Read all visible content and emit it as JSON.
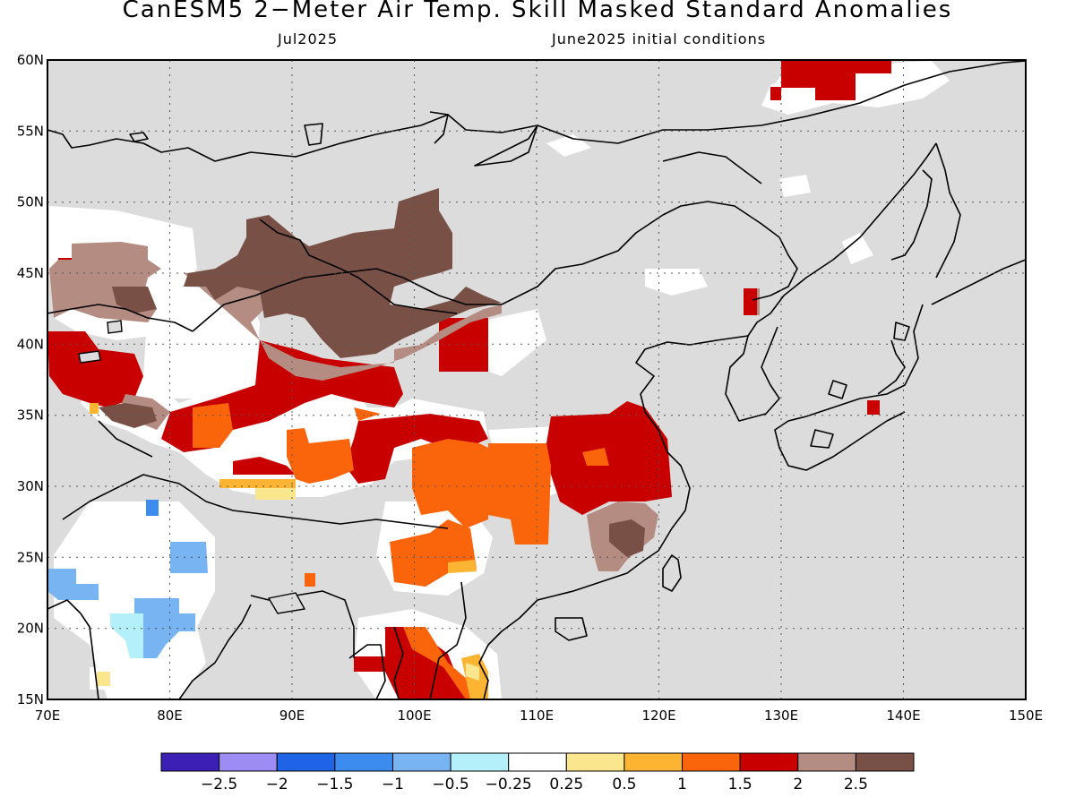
{
  "title": "CanESM5 2−Meter Air Temp. Skill Masked Standard Anomalies",
  "subtitle_left": "Jul2025",
  "subtitle_right": "June2025 initial conditions",
  "map": {
    "lon_range": [
      70,
      150
    ],
    "lat_range": [
      15,
      60
    ],
    "lon_labels": [
      "70E",
      "80E",
      "90E",
      "100E",
      "110E",
      "120E",
      "130E",
      "140E",
      "150E"
    ],
    "lat_labels": [
      "15N",
      "20N",
      "25N",
      "30N",
      "35N",
      "40N",
      "45N",
      "50N",
      "55N",
      "60N"
    ],
    "mask_color": "#dcdcdc",
    "coast_color": "#000000"
  },
  "colorbar": {
    "colors": [
      "#3c1fb4",
      "#9c8cf4",
      "#1f64e6",
      "#3c8cf0",
      "#78b4f2",
      "#b4f0fa",
      "#ffffff",
      "#fae68c",
      "#fcb432",
      "#fa640a",
      "#c80000",
      "#b48c82",
      "#785046"
    ],
    "labels": [
      "−2.5",
      "−2",
      "−1.5",
      "−1",
      "−0.5",
      "−0.25",
      "0.25",
      "0.5",
      "1",
      "1.5",
      "2",
      "2.5"
    ]
  }
}
